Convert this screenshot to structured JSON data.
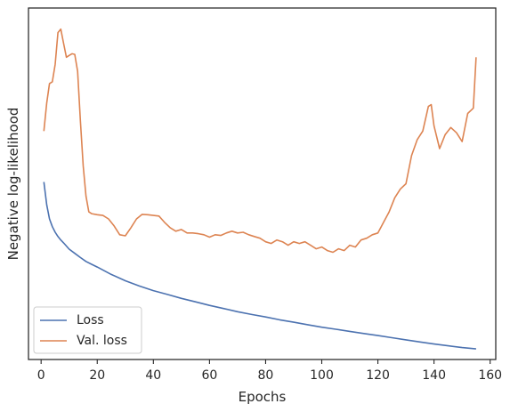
{
  "chart_data": {
    "type": "line",
    "xlabel": "Epochs",
    "ylabel": "Negative log-likelihood",
    "xlim": [
      -4.5,
      162
    ],
    "ylim": [
      0,
      100
    ],
    "x_ticks": [
      0,
      20,
      40,
      60,
      80,
      100,
      120,
      140,
      160
    ],
    "y_tick_labels": "none",
    "grid": false,
    "legend": {
      "position": "lower-left"
    },
    "series": [
      {
        "name": "Loss",
        "color": "#4C72B0",
        "points": [
          [
            1,
            50.5
          ],
          [
            2,
            44.0
          ],
          [
            3,
            40.0
          ],
          [
            4,
            37.8
          ],
          [
            5,
            36.2
          ],
          [
            6,
            35.0
          ],
          [
            7,
            34.0
          ],
          [
            8,
            33.2
          ],
          [
            10,
            31.4
          ],
          [
            12,
            30.2
          ],
          [
            14,
            29.0
          ],
          [
            16,
            27.9
          ],
          [
            18,
            27.1
          ],
          [
            20,
            26.3
          ],
          [
            25,
            24.2
          ],
          [
            30,
            22.4
          ],
          [
            35,
            20.9
          ],
          [
            40,
            19.6
          ],
          [
            45,
            18.5
          ],
          [
            50,
            17.4
          ],
          [
            55,
            16.4
          ],
          [
            60,
            15.4
          ],
          [
            65,
            14.5
          ],
          [
            70,
            13.6
          ],
          [
            75,
            12.8
          ],
          [
            80,
            12.1
          ],
          [
            85,
            11.3
          ],
          [
            90,
            10.6
          ],
          [
            95,
            9.9
          ],
          [
            100,
            9.2
          ],
          [
            105,
            8.6
          ],
          [
            110,
            8.0
          ],
          [
            115,
            7.4
          ],
          [
            120,
            6.8
          ],
          [
            125,
            6.2
          ],
          [
            130,
            5.6
          ],
          [
            135,
            5.0
          ],
          [
            140,
            4.4
          ],
          [
            145,
            3.9
          ],
          [
            150,
            3.4
          ],
          [
            155,
            3.0
          ]
        ]
      },
      {
        "name": "Val. loss",
        "color": "#DD8452",
        "points": [
          [
            1,
            65.0
          ],
          [
            2,
            73.0
          ],
          [
            3,
            78.5
          ],
          [
            4,
            79.0
          ],
          [
            5,
            84.0
          ],
          [
            6,
            93.0
          ],
          [
            7,
            94.0
          ],
          [
            8,
            90.0
          ],
          [
            9,
            86.0
          ],
          [
            10,
            86.5
          ],
          [
            11,
            87.0
          ],
          [
            12,
            86.8
          ],
          [
            13,
            82.0
          ],
          [
            14,
            68.0
          ],
          [
            15,
            55.0
          ],
          [
            16,
            46.5
          ],
          [
            17,
            42.0
          ],
          [
            18,
            41.5
          ],
          [
            20,
            41.2
          ],
          [
            22,
            41.0
          ],
          [
            24,
            40.0
          ],
          [
            26,
            38.0
          ],
          [
            28,
            35.5
          ],
          [
            30,
            35.2
          ],
          [
            32,
            37.5
          ],
          [
            34,
            40.0
          ],
          [
            36,
            41.3
          ],
          [
            38,
            41.2
          ],
          [
            40,
            41.0
          ],
          [
            42,
            40.8
          ],
          [
            44,
            39.0
          ],
          [
            46,
            37.5
          ],
          [
            48,
            36.5
          ],
          [
            50,
            37.0
          ],
          [
            52,
            36.0
          ],
          [
            54,
            36.0
          ],
          [
            56,
            35.8
          ],
          [
            58,
            35.5
          ],
          [
            60,
            34.8
          ],
          [
            62,
            35.5
          ],
          [
            64,
            35.3
          ],
          [
            66,
            36.0
          ],
          [
            68,
            36.5
          ],
          [
            70,
            36.0
          ],
          [
            72,
            36.2
          ],
          [
            74,
            35.5
          ],
          [
            76,
            35.0
          ],
          [
            78,
            34.5
          ],
          [
            80,
            33.5
          ],
          [
            82,
            33.0
          ],
          [
            84,
            34.0
          ],
          [
            86,
            33.5
          ],
          [
            88,
            32.5
          ],
          [
            90,
            33.5
          ],
          [
            92,
            33.0
          ],
          [
            94,
            33.5
          ],
          [
            96,
            32.5
          ],
          [
            98,
            31.5
          ],
          [
            100,
            32.0
          ],
          [
            102,
            31.0
          ],
          [
            104,
            30.5
          ],
          [
            106,
            31.5
          ],
          [
            108,
            31.0
          ],
          [
            110,
            32.5
          ],
          [
            112,
            32.0
          ],
          [
            114,
            34.0
          ],
          [
            116,
            34.5
          ],
          [
            118,
            35.5
          ],
          [
            120,
            36.0
          ],
          [
            122,
            39.0
          ],
          [
            124,
            42.0
          ],
          [
            126,
            46.0
          ],
          [
            128,
            48.5
          ],
          [
            130,
            50.0
          ],
          [
            132,
            58.0
          ],
          [
            134,
            62.5
          ],
          [
            136,
            65.0
          ],
          [
            138,
            72.0
          ],
          [
            139,
            72.5
          ],
          [
            140,
            66.5
          ],
          [
            142,
            60.0
          ],
          [
            144,
            64.0
          ],
          [
            146,
            66.0
          ],
          [
            148,
            64.5
          ],
          [
            150,
            62.0
          ],
          [
            152,
            70.0
          ],
          [
            154,
            71.5
          ],
          [
            155,
            86.0
          ]
        ]
      }
    ]
  }
}
